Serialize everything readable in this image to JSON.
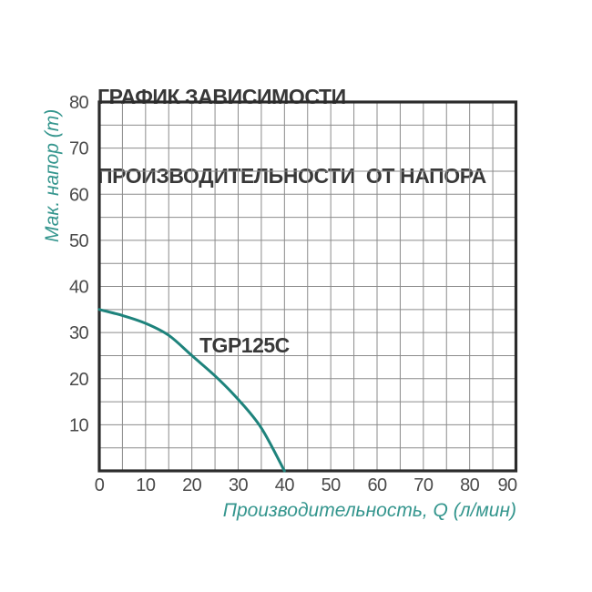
{
  "title": {
    "line1": "ГРАФИК ЗАВИСИМОСТИ",
    "line2": "ПРОИЗВОДИТЕЛЬНОСТИ  ОТ НАПОРА"
  },
  "chart_data": {
    "type": "line",
    "title": "ГРАФИК ЗАВИСИМОСТИ ПРОИЗВОДИТЕЛЬНОСТИ ОТ НАПОРА",
    "xlabel": "Производительность, Q (л/мин)",
    "ylabel": "Мак. напор (m)",
    "xlim": [
      0,
      90
    ],
    "ylim": [
      0,
      80
    ],
    "x_ticks": [
      0,
      10,
      20,
      30,
      40,
      50,
      60,
      70,
      80,
      90
    ],
    "y_ticks": [
      10,
      20,
      30,
      40,
      50,
      60,
      70,
      80
    ],
    "grid": true,
    "grid_step": 5,
    "legend_position": "none",
    "series": [
      {
        "name": "TGP125C",
        "x": [
          0,
          5,
          10,
          15,
          20,
          25,
          30,
          35,
          40
        ],
        "y": [
          35,
          33.7,
          32,
          29.4,
          25,
          20.6,
          15.5,
          9.3,
          0
        ],
        "color": "#1E837C"
      }
    ],
    "series_label": {
      "text": "TGP125C",
      "x": 27,
      "y": 27
    }
  },
  "colors": {
    "background": "#FFFFFF",
    "title_text": "#383838",
    "tick_text": "#4A4A4A",
    "axis_title_text": "#35968E",
    "curve": "#1E837C",
    "grid": "#8B8B8B",
    "axis_border": "#2B2B2B"
  }
}
